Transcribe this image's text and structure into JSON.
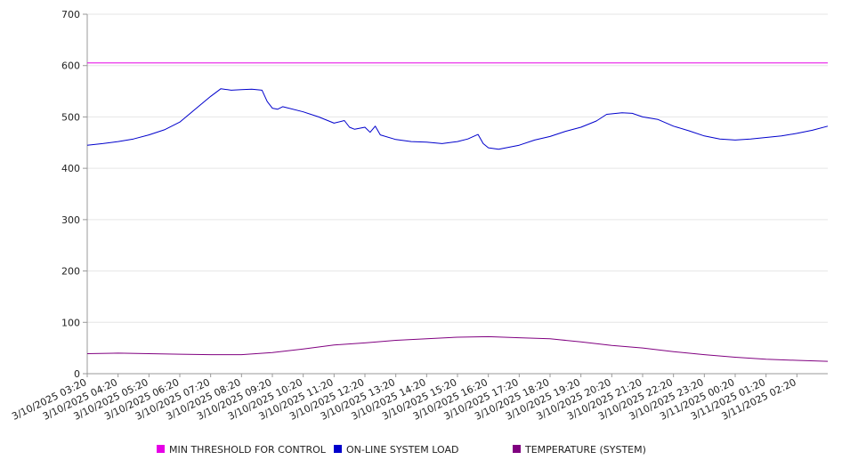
{
  "chart_data": {
    "type": "line",
    "title": "",
    "xlabel": "",
    "ylabel": "",
    "ylim": [
      0,
      700
    ],
    "yticks": [
      0,
      100,
      200,
      300,
      400,
      500,
      600,
      700
    ],
    "grid": true,
    "legend_position": "bottom",
    "x_tick_labels": [
      "3/10/2025 03:20",
      "3/10/2025 04:20",
      "3/10/2025 05:20",
      "3/10/2025 06:20",
      "3/10/2025 07:20",
      "3/10/2025 08:20",
      "3/10/2025 09:20",
      "3/10/2025 10:20",
      "3/10/2025 11:20",
      "3/10/2025 12:20",
      "3/10/2025 13:20",
      "3/10/2025 14:20",
      "3/10/2025 15:20",
      "3/10/2025 16:20",
      "3/10/2025 17:20",
      "3/10/2025 18:20",
      "3/10/2025 19:20",
      "3/10/2025 20:20",
      "3/10/2025 21:20",
      "3/10/2025 22:20",
      "3/10/2025 23:20",
      "3/11/2025 00:20",
      "3/11/2025 01:20",
      "3/11/2025 02:20"
    ],
    "x_range": [
      "3/10/2025 03:20",
      "3/11/2025 03:20"
    ],
    "series": [
      {
        "name": "MIN THRESHOLD FOR CONTROL",
        "color": "#e600e6",
        "points": [
          [
            "3/10/2025 03:20",
            605
          ],
          [
            "3/11/2025 03:20",
            605
          ]
        ]
      },
      {
        "name": "ON-LINE SYSTEM LOAD",
        "color": "#0000cc",
        "points": [
          [
            "3/10/2025 03:20",
            445
          ],
          [
            "3/10/2025 03:50",
            448
          ],
          [
            "3/10/2025 04:20",
            452
          ],
          [
            "3/10/2025 04:50",
            457
          ],
          [
            "3/10/2025 05:20",
            465
          ],
          [
            "3/10/2025 05:50",
            475
          ],
          [
            "3/10/2025 06:20",
            490
          ],
          [
            "3/10/2025 06:50",
            515
          ],
          [
            "3/10/2025 07:20",
            540
          ],
          [
            "3/10/2025 07:40",
            555
          ],
          [
            "3/10/2025 08:00",
            552
          ],
          [
            "3/10/2025 08:20",
            553
          ],
          [
            "3/10/2025 08:40",
            554
          ],
          [
            "3/10/2025 09:00",
            552
          ],
          [
            "3/10/2025 09:10",
            530
          ],
          [
            "3/10/2025 09:20",
            517
          ],
          [
            "3/10/2025 09:30",
            515
          ],
          [
            "3/10/2025 09:40",
            520
          ],
          [
            "3/10/2025 10:20",
            510
          ],
          [
            "3/10/2025 10:50",
            500
          ],
          [
            "3/10/2025 11:20",
            488
          ],
          [
            "3/10/2025 11:40",
            493
          ],
          [
            "3/10/2025 11:50",
            480
          ],
          [
            "3/10/2025 12:00",
            476
          ],
          [
            "3/10/2025 12:20",
            480
          ],
          [
            "3/10/2025 12:30",
            470
          ],
          [
            "3/10/2025 12:40",
            482
          ],
          [
            "3/10/2025 12:50",
            465
          ],
          [
            "3/10/2025 13:20",
            456
          ],
          [
            "3/10/2025 13:50",
            452
          ],
          [
            "3/10/2025 14:20",
            451
          ],
          [
            "3/10/2025 14:50",
            448
          ],
          [
            "3/10/2025 15:20",
            452
          ],
          [
            "3/10/2025 15:40",
            457
          ],
          [
            "3/10/2025 16:00",
            466
          ],
          [
            "3/10/2025 16:10",
            448
          ],
          [
            "3/10/2025 16:20",
            440
          ],
          [
            "3/10/2025 16:40",
            437
          ],
          [
            "3/10/2025 17:20",
            445
          ],
          [
            "3/10/2025 17:50",
            455
          ],
          [
            "3/10/2025 18:20",
            462
          ],
          [
            "3/10/2025 18:50",
            472
          ],
          [
            "3/10/2025 19:20",
            480
          ],
          [
            "3/10/2025 19:50",
            492
          ],
          [
            "3/10/2025 20:10",
            505
          ],
          [
            "3/10/2025 20:40",
            508
          ],
          [
            "3/10/2025 21:00",
            507
          ],
          [
            "3/10/2025 21:20",
            500
          ],
          [
            "3/10/2025 21:50",
            495
          ],
          [
            "3/10/2025 22:20",
            482
          ],
          [
            "3/10/2025 22:50",
            473
          ],
          [
            "3/10/2025 23:20",
            463
          ],
          [
            "3/10/2025 23:50",
            457
          ],
          [
            "3/11/2025 00:20",
            455
          ],
          [
            "3/11/2025 00:50",
            457
          ],
          [
            "3/11/2025 01:20",
            460
          ],
          [
            "3/11/2025 01:50",
            463
          ],
          [
            "3/11/2025 02:20",
            468
          ],
          [
            "3/11/2025 02:50",
            474
          ],
          [
            "3/11/2025 03:20",
            482
          ]
        ]
      },
      {
        "name": "TEMPERATURE (SYSTEM)",
        "color": "#800080",
        "points": [
          [
            "3/10/2025 03:20",
            39
          ],
          [
            "3/10/2025 04:20",
            40
          ],
          [
            "3/10/2025 05:20",
            39
          ],
          [
            "3/10/2025 06:20",
            38
          ],
          [
            "3/10/2025 07:20",
            37
          ],
          [
            "3/10/2025 08:20",
            37
          ],
          [
            "3/10/2025 09:20",
            41
          ],
          [
            "3/10/2025 10:20",
            48
          ],
          [
            "3/10/2025 11:20",
            56
          ],
          [
            "3/10/2025 12:20",
            60
          ],
          [
            "3/10/2025 13:20",
            65
          ],
          [
            "3/10/2025 14:20",
            68
          ],
          [
            "3/10/2025 15:20",
            71
          ],
          [
            "3/10/2025 16:20",
            72
          ],
          [
            "3/10/2025 17:20",
            70
          ],
          [
            "3/10/2025 18:20",
            68
          ],
          [
            "3/10/2025 19:20",
            62
          ],
          [
            "3/10/2025 20:20",
            55
          ],
          [
            "3/10/2025 21:20",
            50
          ],
          [
            "3/10/2025 22:20",
            43
          ],
          [
            "3/10/2025 23:20",
            37
          ],
          [
            "3/11/2025 00:20",
            32
          ],
          [
            "3/11/2025 01:20",
            28
          ],
          [
            "3/11/2025 02:20",
            26
          ],
          [
            "3/11/2025 03:20",
            24
          ]
        ]
      }
    ]
  }
}
